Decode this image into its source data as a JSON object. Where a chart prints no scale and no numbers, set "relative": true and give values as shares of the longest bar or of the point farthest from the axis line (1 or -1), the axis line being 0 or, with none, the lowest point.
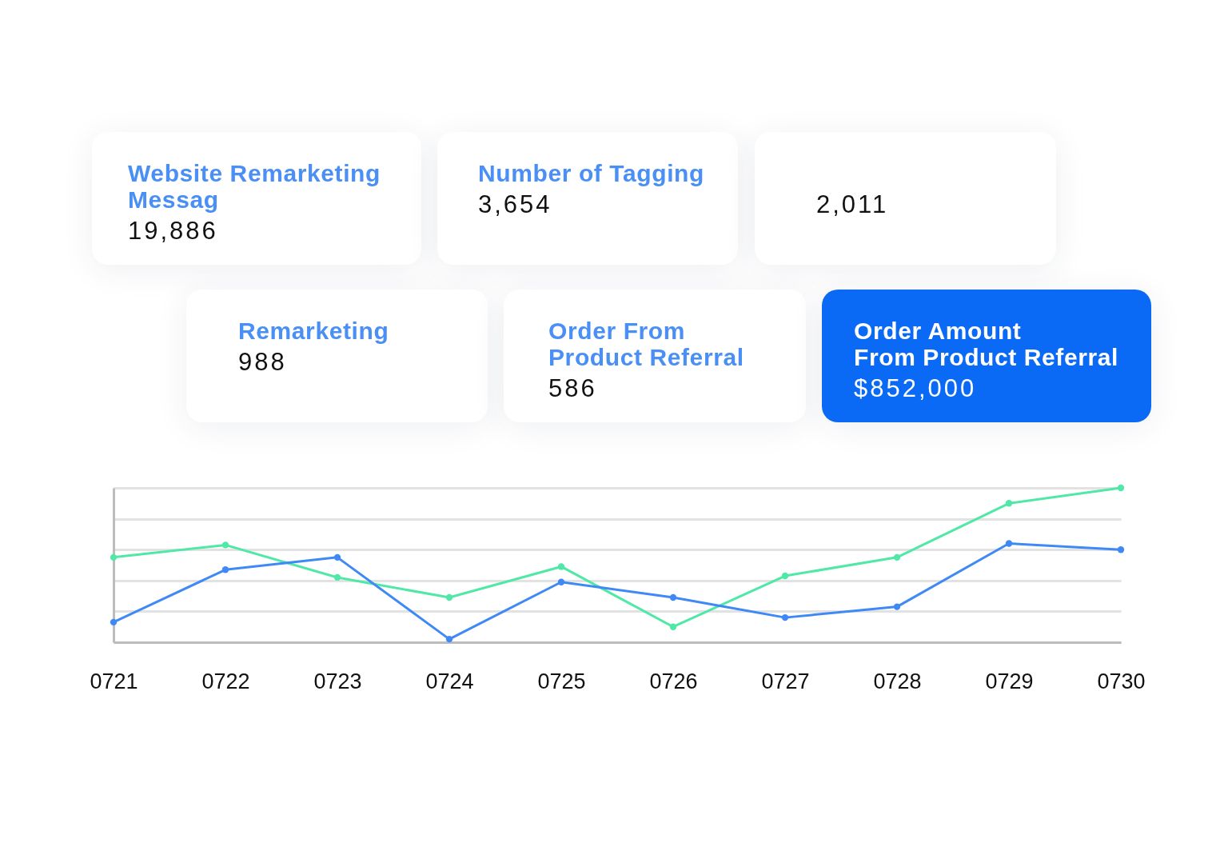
{
  "chart_data": [
    {
      "type": "other",
      "title": "Website Remarketing\nMessag",
      "annotations": [
        "19,886"
      ]
    },
    {
      "type": "other",
      "title": "Number of Tagging",
      "annotations": [
        "3,654"
      ]
    },
    {
      "type": "other",
      "annotations": [
        "2,011"
      ]
    },
    {
      "type": "other",
      "title": "Remarketing",
      "annotations": [
        "988"
      ]
    },
    {
      "type": "other",
      "title": "Order From\nProduct Referral",
      "annotations": [
        "586"
      ]
    },
    {
      "type": "other",
      "title": "Order Amount\nFrom Product Referral",
      "annotations": [
        "$852,000"
      ],
      "color": "#0a6af5"
    },
    {
      "type": "line",
      "categories": [
        "0721",
        "0722",
        "0723",
        "0724",
        "0725",
        "0726",
        "0727",
        "0728",
        "0729",
        "0730"
      ],
      "series": [
        {
          "color": "#4fe8a6",
          "values": [
            0.55,
            0.63,
            0.42,
            0.29,
            0.49,
            0.1,
            0.43,
            0.55,
            0.9,
            1
          ]
        },
        {
          "color": "#3f89f6",
          "values": [
            0.13,
            0.47,
            0.55,
            0.02,
            0.39,
            0.29,
            0.16,
            0.23,
            0.64,
            0.6
          ]
        }
      ],
      "relative": true,
      "grid": "y",
      "marker": "circle",
      "line_style": "solid"
    }
  ]
}
